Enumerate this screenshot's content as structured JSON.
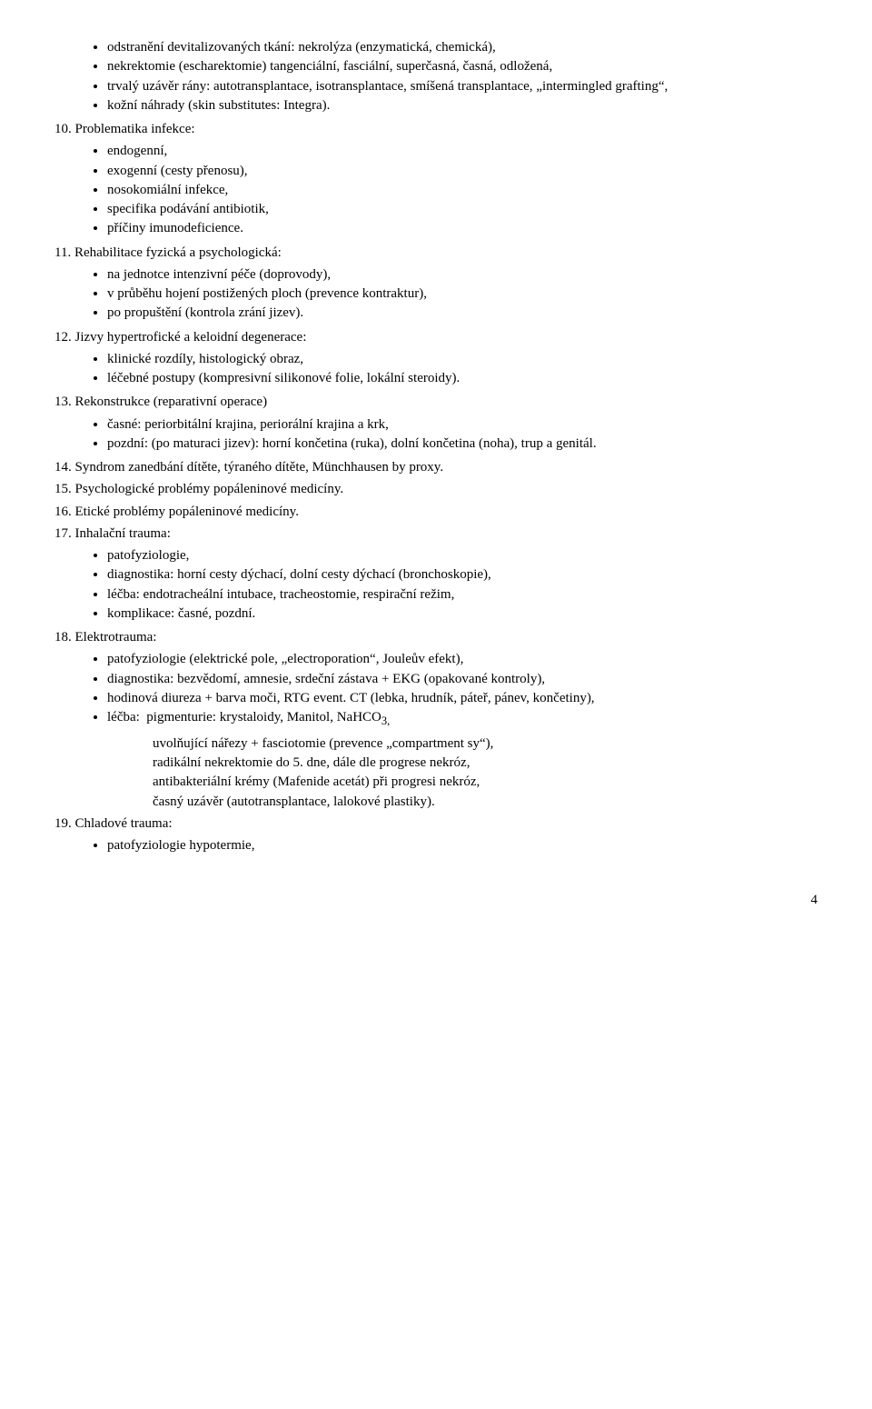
{
  "top_bullets": [
    "odstranění devitalizovaných tkání: nekrolýza (enzymatická, chemická),",
    "nekrektomie (escharektomie) tangenciální, fasciální, superčasná, časná, odložená,",
    "trvalý uzávěr rány: autotransplantace, isotransplantace, smíšená transplantace, „intermingled grafting“,",
    "kožní náhrady (skin substitutes: Integra)."
  ],
  "s10": {
    "title": "10. Problematika infekce:",
    "items": [
      "endogenní,",
      "exogenní (cesty přenosu),",
      "nosokomiální infekce,",
      "specifika podávání antibiotik,",
      "příčiny imunodeficience."
    ]
  },
  "s11": {
    "title": "11. Rehabilitace fyzická a psychologická:",
    "items": [
      "na jednotce intenzivní péče (doprovody),",
      "v průběhu hojení postižených ploch (prevence kontraktur),",
      "po propuštění (kontrola zrání jizev)."
    ]
  },
  "s12": {
    "title": "12. Jizvy hypertrofické a keloidní degenerace:",
    "items": [
      "klinické rozdíly, histologický obraz,",
      "léčebné postupy (kompresivní silikonové folie, lokální steroidy)."
    ]
  },
  "s13": {
    "title": "13. Rekonstrukce (reparativní operace)",
    "items": [
      "časné: periorbitální krajina, periorální krajina a krk,",
      "pozdní: (po maturaci jizev): horní končetina (ruka), dolní končetina (noha), trup a genitál."
    ]
  },
  "s14": "14. Syndrom zanedbání dítěte, týraného dítěte, Münchhausen by proxy.",
  "s15": "15. Psychologické problémy popáleninové medicíny.",
  "s16": "16. Etické problémy popáleninové medicíny.",
  "s17": {
    "title": "17. Inhalační trauma:",
    "items": [
      "patofyziologie,",
      "diagnostika: horní cesty dýchací, dolní cesty dýchací (bronchoskopie),",
      "léčba: endotracheální intubace, tracheostomie, respirační režim,",
      "komplikace: časné, pozdní."
    ]
  },
  "s18": {
    "title": "18. Elektrotrauma:",
    "items": [
      "patofyziologie (elektrické pole, „electroporation“, Jouleův efekt),",
      "diagnostika: bezvědomí, amnesie, srdeční zástava + EKG (opakované kontroly),",
      "hodinová diureza + barva moči, RTG event. CT (lebka, hrudník, páteř, pánev, končetiny),"
    ],
    "lecba_first": "léčba:  pigmenturie: krystaloidy, Manitol, NaHCO",
    "lecba_sub_suffix": "3,",
    "sub": [
      "uvolňující nářezy + fasciotomie (prevence „compartment sy“),",
      "radikální nekrektomie do 5. dne, dále dle progrese nekróz,",
      "antibakteriální krémy (Mafenide acetát) při progresi nekróz,",
      "časný uzávěr (autotransplantace, lalokové plastiky)."
    ]
  },
  "s19": {
    "title": "19. Chladové trauma:",
    "items": [
      "patofyziologie hypotermie,"
    ]
  },
  "page": "4"
}
